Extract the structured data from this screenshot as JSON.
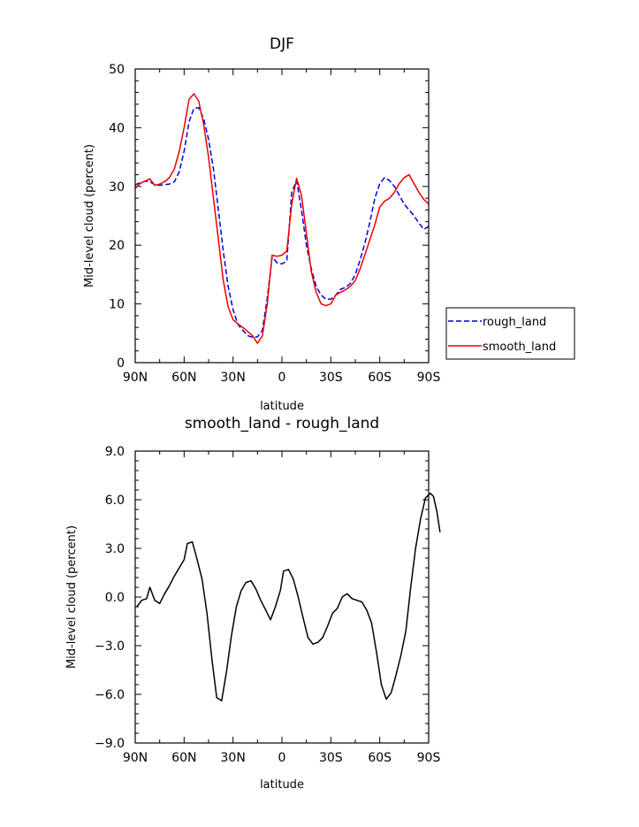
{
  "colors": {
    "rough_land": "#0000dd",
    "smooth_land": "#ee0000",
    "difference": "#000000",
    "frame": "#000000"
  },
  "chart_data": [
    {
      "type": "line",
      "title": "DJF",
      "xlabel": "latitude",
      "ylabel": "Mid-level cloud (percent)",
      "xlim": [
        90,
        -90
      ],
      "ylim": [
        0,
        50
      ],
      "x_tick_values": [
        90,
        60,
        30,
        0,
        -30,
        -60,
        -90
      ],
      "x_tick_labels": [
        "90N",
        "60N",
        "30N",
        "0",
        "30S",
        "60S",
        "90S"
      ],
      "y_tick_values": [
        0,
        10,
        20,
        30,
        40,
        50
      ],
      "y_tick_labels": [
        "0",
        "10",
        "20",
        "30",
        "40",
        "50"
      ],
      "legend_position": "right",
      "grid": false,
      "series": [
        {
          "name": "rough_land",
          "style": "dashed",
          "color": "#0000dd",
          "points": [
            [
              90,
              30.3
            ],
            [
              87,
              30.6
            ],
            [
              84,
              30.9
            ],
            [
              81,
              30.8
            ],
            [
              78,
              30.3
            ],
            [
              75,
              30.2
            ],
            [
              72,
              30.3
            ],
            [
              69,
              30.4
            ],
            [
              66,
              30.8
            ],
            [
              63,
              32.5
            ],
            [
              60,
              36
            ],
            [
              57,
              41
            ],
            [
              54,
              43.3
            ],
            [
              51,
              43.4
            ],
            [
              48,
              41.5
            ],
            [
              45,
              38
            ],
            [
              42,
              33
            ],
            [
              39,
              26
            ],
            [
              36,
              19
            ],
            [
              33,
              13
            ],
            [
              30,
              9
            ],
            [
              27,
              6.5
            ],
            [
              24,
              5.5
            ],
            [
              21,
              4.6
            ],
            [
              18,
              4.3
            ],
            [
              15,
              4.4
            ],
            [
              12,
              5.5
            ],
            [
              9,
              11
            ],
            [
              6,
              18
            ],
            [
              3,
              17
            ],
            [
              0,
              16.8
            ],
            [
              -3,
              17.3
            ],
            [
              -6,
              29
            ],
            [
              -9,
              31
            ],
            [
              -12,
              26
            ],
            [
              -15,
              20
            ],
            [
              -18,
              16
            ],
            [
              -21,
              13
            ],
            [
              -24,
              11.5
            ],
            [
              -27,
              10.8
            ],
            [
              -30,
              10.8
            ],
            [
              -33,
              11.5
            ],
            [
              -36,
              12.5
            ],
            [
              -39,
              12.8
            ],
            [
              -42,
              13.5
            ],
            [
              -45,
              15
            ],
            [
              -48,
              17.5
            ],
            [
              -51,
              20.5
            ],
            [
              -54,
              24
            ],
            [
              -57,
              28
            ],
            [
              -60,
              30.5
            ],
            [
              -63,
              31.5
            ],
            [
              -66,
              31
            ],
            [
              -69,
              30
            ],
            [
              -72,
              28.5
            ],
            [
              -75,
              27
            ],
            [
              -78,
              26
            ],
            [
              -81,
              25
            ],
            [
              -84,
              23.8
            ],
            [
              -87,
              22.7
            ],
            [
              -90,
              23.2
            ]
          ]
        },
        {
          "name": "smooth_land",
          "style": "solid",
          "color": "#ee0000",
          "points": [
            [
              90,
              29.7
            ],
            [
              87,
              30.5
            ],
            [
              84,
              30.9
            ],
            [
              81,
              31.3
            ],
            [
              78,
              30.2
            ],
            [
              75,
              30.4
            ],
            [
              72,
              30.8
            ],
            [
              69,
              31.5
            ],
            [
              66,
              33
            ],
            [
              63,
              36
            ],
            [
              60,
              40
            ],
            [
              57,
              44.8
            ],
            [
              54,
              45.8
            ],
            [
              51,
              44.5
            ],
            [
              48,
              40.5
            ],
            [
              45,
              35
            ],
            [
              42,
              28
            ],
            [
              39,
              21
            ],
            [
              36,
              14
            ],
            [
              33,
              9.5
            ],
            [
              30,
              7.3
            ],
            [
              27,
              6.6
            ],
            [
              24,
              6
            ],
            [
              21,
              5.3
            ],
            [
              18,
              4.6
            ],
            [
              15,
              3.3
            ],
            [
              12,
              4.6
            ],
            [
              9,
              10
            ],
            [
              6,
              18.3
            ],
            [
              3,
              18.1
            ],
            [
              0,
              18.3
            ],
            [
              -3,
              19
            ],
            [
              -6,
              27
            ],
            [
              -9,
              31.4
            ],
            [
              -12,
              28.5
            ],
            [
              -15,
              22
            ],
            [
              -18,
              15.5
            ],
            [
              -21,
              12
            ],
            [
              -24,
              10
            ],
            [
              -27,
              9.7
            ],
            [
              -30,
              10
            ],
            [
              -33,
              11.5
            ],
            [
              -36,
              12
            ],
            [
              -39,
              12.4
            ],
            [
              -42,
              13
            ],
            [
              -45,
              14
            ],
            [
              -48,
              16
            ],
            [
              -51,
              18.5
            ],
            [
              -54,
              21
            ],
            [
              -57,
              23.5
            ],
            [
              -60,
              26.5
            ],
            [
              -63,
              27.5
            ],
            [
              -66,
              28
            ],
            [
              -69,
              29
            ],
            [
              -72,
              30.5
            ],
            [
              -75,
              31.5
            ],
            [
              -78,
              32
            ],
            [
              -81,
              30.5
            ],
            [
              -84,
              29
            ],
            [
              -87,
              27.8
            ],
            [
              -90,
              27
            ]
          ]
        }
      ]
    },
    {
      "type": "line",
      "title": "smooth_land - rough_land",
      "xlabel": "latitude",
      "ylabel": "Mid-level cloud (percent)",
      "xlim": [
        90,
        -90
      ],
      "ylim": [
        -9,
        9
      ],
      "x_tick_values": [
        90,
        60,
        30,
        0,
        -30,
        -60,
        -90
      ],
      "x_tick_labels": [
        "90N",
        "60N",
        "30N",
        "0",
        "30S",
        "60S",
        "90S"
      ],
      "y_tick_values": [
        9,
        6,
        3,
        0,
        -3,
        -6,
        -9
      ],
      "y_tick_labels": [
        "9.0",
        "6.0",
        "3.0",
        "0.0",
        "−3.0",
        "−6.0",
        "−9.0"
      ],
      "grid": false,
      "series": [
        {
          "color": "#000000",
          "style": "solid",
          "points": [
            [
              89,
              -0.6
            ],
            [
              86,
              -0.2
            ],
            [
              83,
              -0.1
            ],
            [
              81,
              0.6
            ],
            [
              78,
              -0.2
            ],
            [
              75,
              -0.4
            ],
            [
              72,
              0.2
            ],
            [
              69,
              0.7
            ],
            [
              66,
              1.3
            ],
            [
              63,
              1.8
            ],
            [
              60,
              2.3
            ],
            [
              58,
              3.3
            ],
            [
              55,
              3.4
            ],
            [
              52,
              2.3
            ],
            [
              49,
              1.1
            ],
            [
              46,
              -1
            ],
            [
              43,
              -3.8
            ],
            [
              40,
              -6.2
            ],
            [
              37,
              -6.4
            ],
            [
              34,
              -4.6
            ],
            [
              31,
              -2.4
            ],
            [
              28,
              -0.6
            ],
            [
              25,
              0.4
            ],
            [
              22,
              0.9
            ],
            [
              19,
              1
            ],
            [
              16,
              0.5
            ],
            [
              13,
              -0.2
            ],
            [
              10,
              -0.8
            ],
            [
              7,
              -1.4
            ],
            [
              4,
              -0.6
            ],
            [
              1,
              0.4
            ],
            [
              -1,
              1.6
            ],
            [
              -4,
              1.7
            ],
            [
              -7,
              1.1
            ],
            [
              -10,
              0
            ],
            [
              -13,
              -1.3
            ],
            [
              -16,
              -2.5
            ],
            [
              -19,
              -2.9
            ],
            [
              -22,
              -2.8
            ],
            [
              -25,
              -2.5
            ],
            [
              -28,
              -1.8
            ],
            [
              -31,
              -1
            ],
            [
              -34,
              -0.7
            ],
            [
              -37,
              0
            ],
            [
              -40,
              0.2
            ],
            [
              -43,
              -0.1
            ],
            [
              -46,
              -0.2
            ],
            [
              -49,
              -0.3
            ],
            [
              -52,
              -0.8
            ],
            [
              -55,
              -1.6
            ],
            [
              -58,
              -3.4
            ],
            [
              -61,
              -5.4
            ],
            [
              -64,
              -6.3
            ],
            [
              -67,
              -5.9
            ],
            [
              -70,
              -4.8
            ],
            [
              -73,
              -3.6
            ],
            [
              -76,
              -2.1
            ],
            [
              -79,
              0.6
            ],
            [
              -82,
              3
            ],
            [
              -85,
              4.8
            ],
            [
              -88,
              6.1
            ],
            [
              -91,
              6.4
            ],
            [
              -93,
              6.2
            ],
            [
              -95,
              5.3
            ],
            [
              -97,
              4
            ]
          ]
        }
      ]
    }
  ]
}
